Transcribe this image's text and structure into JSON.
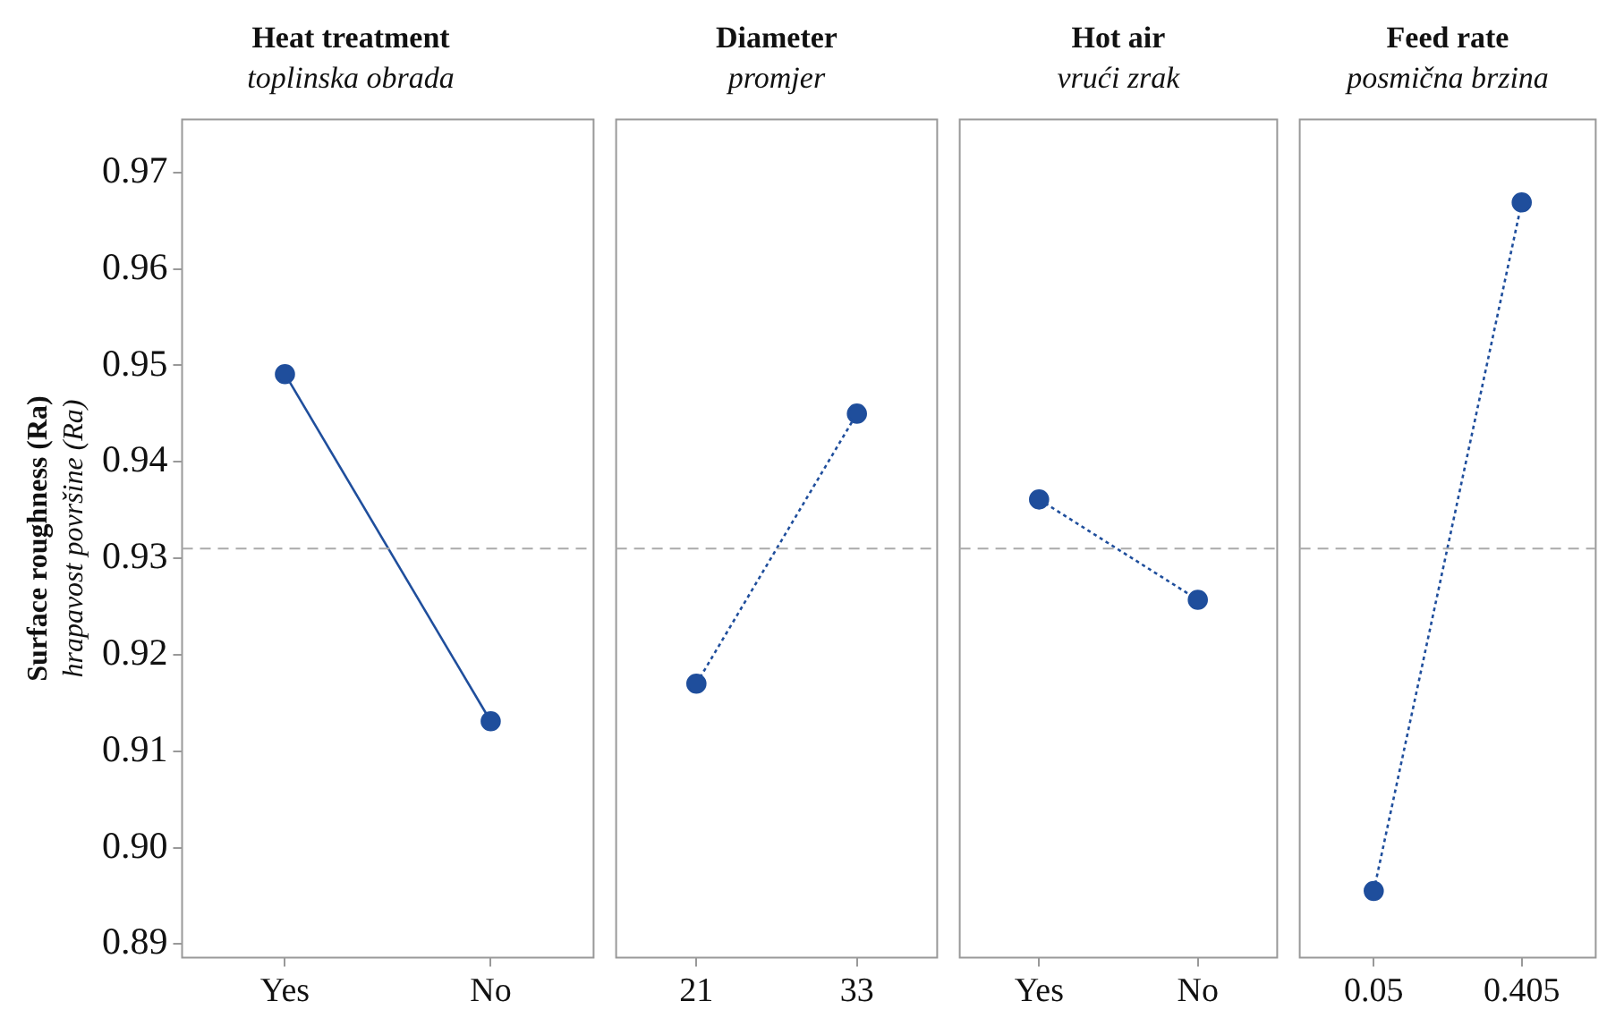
{
  "chart_data": [
    {
      "type": "line",
      "title": "Heat treatment",
      "subtitle": "toplinska obrada",
      "ylabel": "Surface roughness (Ra)\nhrapavost površine (Ra)",
      "categories": [
        "Yes",
        "No"
      ],
      "series": [
        {
          "color": "#1f4e9c",
          "values": [
            0.9491,
            0.9131
          ]
        }
      ],
      "ylim": [
        0.8886,
        0.9755
      ],
      "yticks": [
        {
          "value": 0.89,
          "label": "0.89"
        },
        {
          "value": 0.9,
          "label": "0.90"
        },
        0.91,
        0.92,
        0.93,
        0.94,
        0.95,
        0.96,
        0.97
      ],
      "ref_lines": [
        {
          "axis": "y",
          "value": 0.931,
          "color": "#aaaaaa",
          "line_style": "dashed"
        }
      ],
      "marker": "circle",
      "line_style": "solid"
    },
    {
      "type": "line",
      "title": "Diameter",
      "subtitle": "promjer",
      "categories": [
        "21",
        "33"
      ],
      "series": [
        {
          "color": "#1f4e9c",
          "values": [
            0.917,
            0.945
          ]
        }
      ],
      "ylim": [
        0.8886,
        0.9755
      ],
      "tick_labels": "x",
      "ref_lines": [
        {
          "axis": "y",
          "value": 0.931,
          "color": "#aaaaaa",
          "line_style": "dashed"
        }
      ],
      "marker": "circle",
      "line_style": "dotted"
    },
    {
      "type": "line",
      "title": "Hot air",
      "subtitle": "vrući zrak",
      "categories": [
        "Yes",
        "No"
      ],
      "series": [
        {
          "color": "#1f4e9c",
          "values": [
            0.9361,
            0.9257
          ]
        }
      ],
      "ylim": [
        0.8886,
        0.9755
      ],
      "tick_labels": "x",
      "ref_lines": [
        {
          "axis": "y",
          "value": 0.931,
          "color": "#aaaaaa",
          "line_style": "dashed"
        }
      ],
      "marker": "circle",
      "line_style": "dotted"
    },
    {
      "type": "line",
      "title": "Feed rate",
      "subtitle": "posmična brzina",
      "categories": [
        "0.05",
        "0.405"
      ],
      "series": [
        {
          "color": "#1f4e9c",
          "values": [
            0.8955,
            0.9669
          ]
        }
      ],
      "ylim": [
        0.8886,
        0.9755
      ],
      "tick_labels": "x",
      "ref_lines": [
        {
          "axis": "y",
          "value": 0.931,
          "color": "#aaaaaa",
          "line_style": "dashed"
        }
      ],
      "marker": "circle",
      "line_style": "dotted"
    }
  ]
}
